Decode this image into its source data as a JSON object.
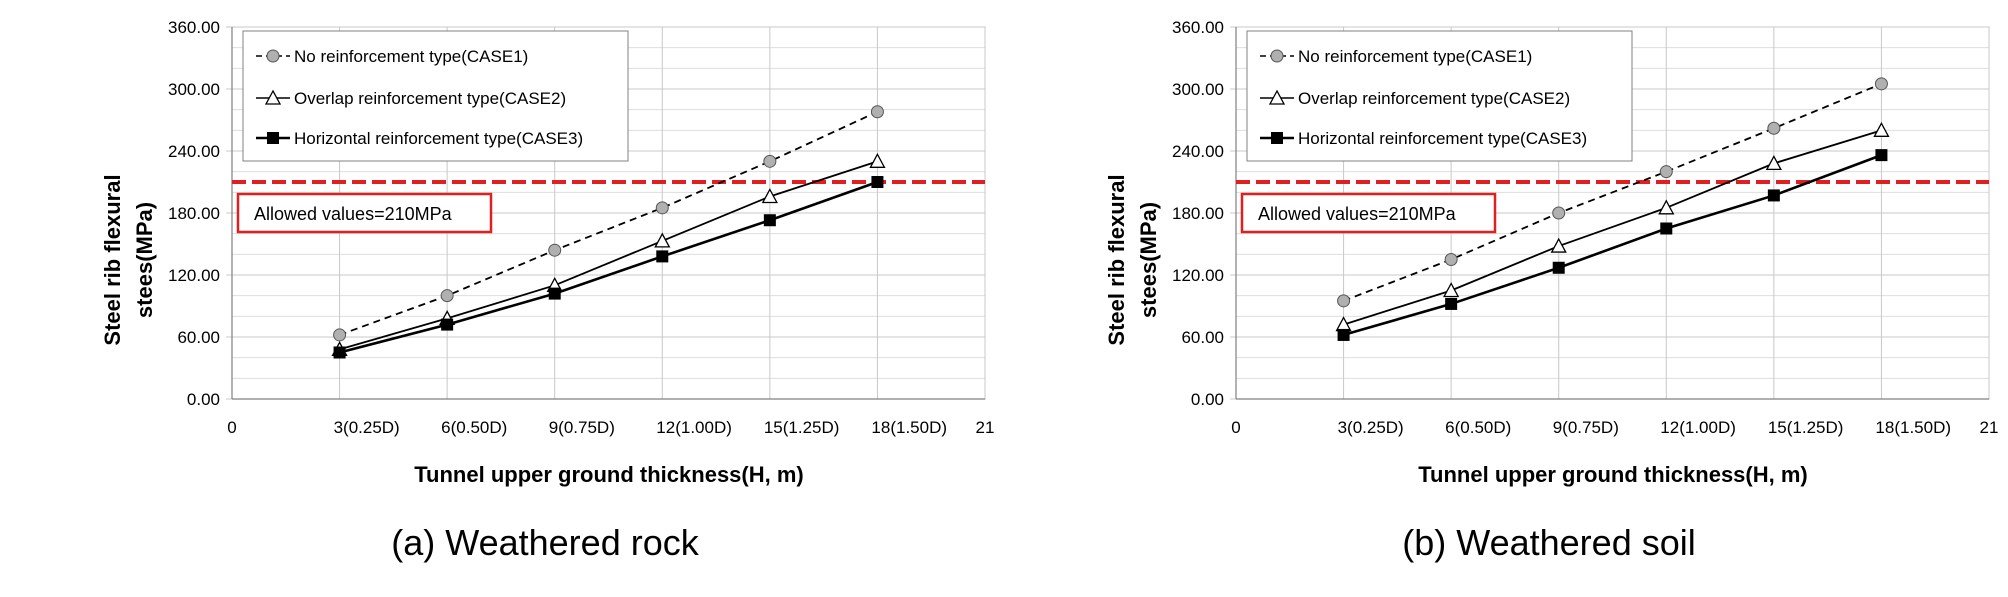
{
  "chart_data": [
    {
      "type": "line",
      "caption": "(a) Weathered rock",
      "xlabel": "Tunnel upper ground thickness(H, m)",
      "ylabel_lines": [
        "Steel   rib   flexural",
        "stees(MPa)"
      ],
      "xlim": [
        0,
        21
      ],
      "ylim": [
        0,
        360
      ],
      "x_ticks": [
        {
          "value": 0,
          "label": "0",
          "sub": ""
        },
        {
          "value": 3,
          "label": "3",
          "sub": "(0.25D)"
        },
        {
          "value": 6,
          "label": "6",
          "sub": "(0.50D)"
        },
        {
          "value": 9,
          "label": "9",
          "sub": "(0.75D)"
        },
        {
          "value": 12,
          "label": "12",
          "sub": "(1.00D)"
        },
        {
          "value": 15,
          "label": "15",
          "sub": "(1.25D)"
        },
        {
          "value": 18,
          "label": "18",
          "sub": "(1.50D)"
        },
        {
          "value": 21,
          "label": "21",
          "sub": ""
        }
      ],
      "y_ticks": [
        {
          "value": 0,
          "label": "0.00"
        },
        {
          "value": 60,
          "label": "60.00"
        },
        {
          "value": 120,
          "label": "120.00"
        },
        {
          "value": 180,
          "label": "180.00"
        },
        {
          "value": 240,
          "label": "240.00"
        },
        {
          "value": 300,
          "label": "300.00"
        },
        {
          "value": 360,
          "label": "360.00"
        }
      ],
      "grid": true,
      "legend_position": "top-left",
      "x": [
        3,
        6,
        9,
        12,
        15,
        18
      ],
      "series": [
        {
          "name": "No reinforcement type(CASE1)",
          "marker": "circle",
          "style": "dashed",
          "values": [
            62,
            100,
            144,
            185,
            230,
            278
          ]
        },
        {
          "name": "Overlap reinforcement type(CASE2)",
          "marker": "triangle",
          "style": "solid",
          "values": [
            48,
            78,
            110,
            153,
            196,
            230
          ]
        },
        {
          "name": "Horizontal reinforcement type(CASE3)",
          "marker": "square",
          "style": "solid",
          "values": [
            45,
            72,
            102,
            138,
            173,
            210
          ]
        }
      ],
      "reference_line": {
        "value": 210,
        "label": "Allowed values=210MPa",
        "color": "#e02020"
      }
    },
    {
      "type": "line",
      "caption": "(b) Weathered soil",
      "xlabel": "Tunnel upper ground thickness(H, m)",
      "ylabel_lines": [
        "Steel   rib   flexural",
        "stees(MPa)"
      ],
      "xlim": [
        0,
        21
      ],
      "ylim": [
        0,
        360
      ],
      "x_ticks": [
        {
          "value": 0,
          "label": "0",
          "sub": ""
        },
        {
          "value": 3,
          "label": "3",
          "sub": "(0.25D)"
        },
        {
          "value": 6,
          "label": "6",
          "sub": "(0.50D)"
        },
        {
          "value": 9,
          "label": "9",
          "sub": "(0.75D)"
        },
        {
          "value": 12,
          "label": "12",
          "sub": "(1.00D)"
        },
        {
          "value": 15,
          "label": "15",
          "sub": "(1.25D)"
        },
        {
          "value": 18,
          "label": "18",
          "sub": "(1.50D)"
        },
        {
          "value": 21,
          "label": "21",
          "sub": ""
        }
      ],
      "y_ticks": [
        {
          "value": 0,
          "label": "0.00"
        },
        {
          "value": 60,
          "label": "60.00"
        },
        {
          "value": 120,
          "label": "120.00"
        },
        {
          "value": 180,
          "label": "180.00"
        },
        {
          "value": 240,
          "label": "240.00"
        },
        {
          "value": 300,
          "label": "300.00"
        },
        {
          "value": 360,
          "label": "360.00"
        }
      ],
      "grid": true,
      "legend_position": "top-left",
      "x": [
        3,
        6,
        9,
        12,
        15,
        18
      ],
      "series": [
        {
          "name": "No reinforcement type(CASE1)",
          "marker": "circle",
          "style": "dashed",
          "values": [
            95,
            135,
            180,
            220,
            262,
            305
          ]
        },
        {
          "name": "Overlap reinforcement type(CASE2)",
          "marker": "triangle",
          "style": "solid",
          "values": [
            72,
            105,
            148,
            185,
            228,
            260
          ]
        },
        {
          "name": "Horizontal reinforcement type(CASE3)",
          "marker": "square",
          "style": "solid",
          "values": [
            62,
            92,
            127,
            165,
            197,
            236
          ]
        }
      ],
      "reference_line": {
        "value": 210,
        "label": "Allowed values=210MPa",
        "color": "#e02020"
      }
    }
  ],
  "colors": {
    "line": "#000000",
    "circle_fill": "#b0b0b0",
    "grid": "#c8c8c8",
    "reference": "#e02020"
  }
}
